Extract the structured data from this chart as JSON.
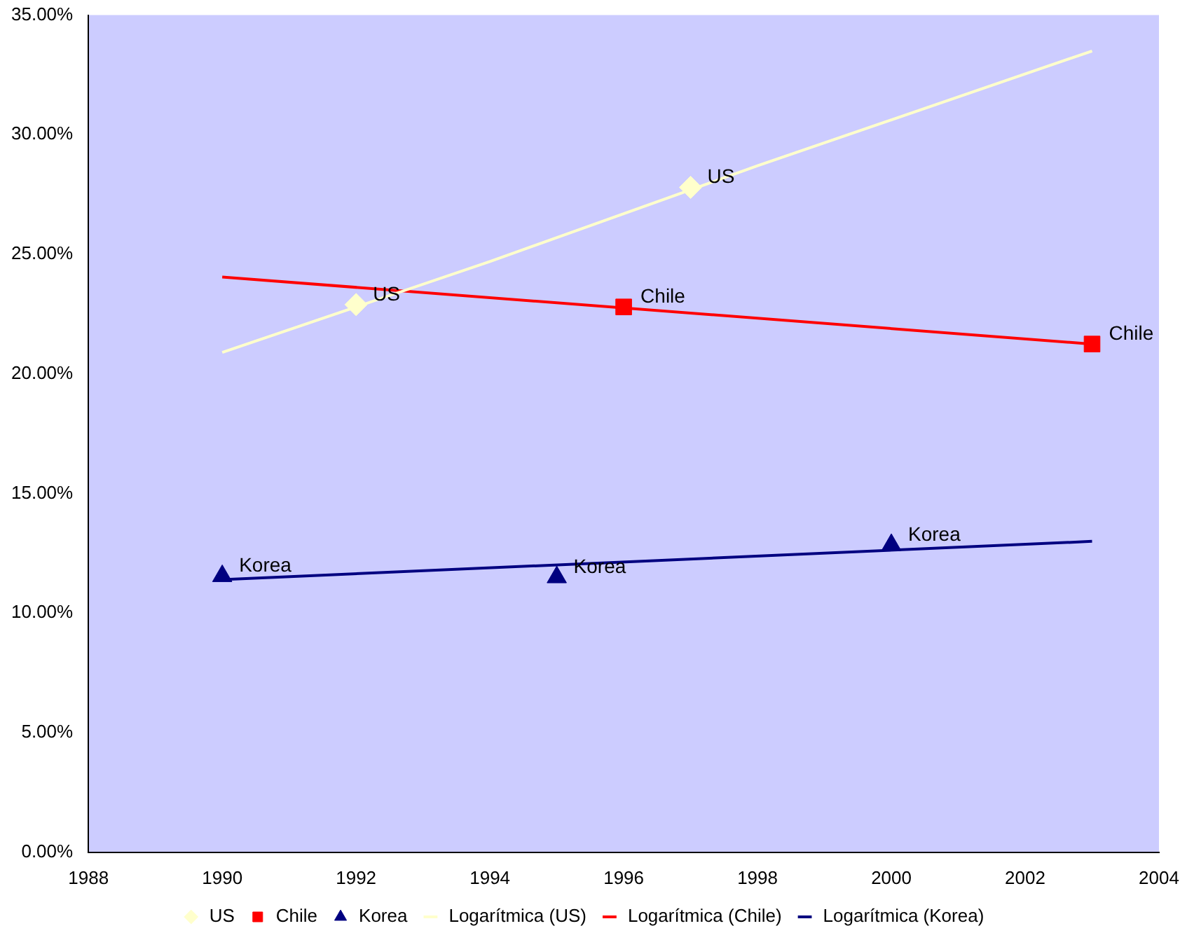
{
  "chart_data": {
    "type": "scatter",
    "legend": "bottom",
    "grid": false,
    "xlim": [
      1988,
      2004
    ],
    "xticks": [
      1988,
      1990,
      1992,
      1994,
      1996,
      1998,
      2000,
      2002,
      2004
    ],
    "ylim": [
      0,
      35
    ],
    "yticks": [
      {
        "value": 0,
        "label": "0.00%"
      },
      {
        "value": 5,
        "label": "5.00%"
      },
      {
        "value": 10,
        "label": "10.00%"
      },
      {
        "value": 15,
        "label": "15.00%"
      },
      {
        "value": 20,
        "label": "20.00%"
      },
      {
        "value": 25,
        "label": "25.00%"
      },
      {
        "value": 30,
        "label": "30.00%"
      },
      {
        "value": 35,
        "label": "35.00%"
      }
    ],
    "series": [
      {
        "name": "US",
        "type": "scatter",
        "marker": "diamond",
        "color": "#ffffcc",
        "x": [
          1992,
          1997
        ],
        "values": [
          22.9,
          27.8
        ]
      },
      {
        "name": "Chile",
        "type": "scatter",
        "marker": "square",
        "color": "#ff0000",
        "x": [
          1996,
          2003
        ],
        "values": [
          22.8,
          21.25
        ]
      },
      {
        "name": "Korea",
        "type": "scatter",
        "marker": "triangle",
        "color": "#000080",
        "x": [
          1990,
          1995,
          2000
        ],
        "values": [
          11.55,
          11.5,
          12.85
        ]
      },
      {
        "name": "Logarítmica (US)",
        "type": "line",
        "marker": "none",
        "color": "#ffffcc",
        "x": [
          1990,
          1994,
          1998,
          2003
        ],
        "values": [
          20.9,
          24.7,
          28.7,
          33.5
        ]
      },
      {
        "name": "Logarítmica (Chile)",
        "type": "line",
        "marker": "none",
        "color": "#ff0000",
        "x": [
          1990,
          2003
        ],
        "values": [
          24.05,
          21.25
        ]
      },
      {
        "name": "Logarítmica (Korea)",
        "type": "line",
        "marker": "none",
        "color": "#000080",
        "x": [
          1990,
          2003
        ],
        "values": [
          11.4,
          13.0
        ]
      }
    ],
    "annotations": [
      {
        "text": "US",
        "x": 1992,
        "y": 22.9
      },
      {
        "text": "US",
        "x": 1997,
        "y": 27.8
      },
      {
        "text": "Chile",
        "x": 1996,
        "y": 22.8
      },
      {
        "text": "Chile",
        "x": 2003,
        "y": 21.25
      },
      {
        "text": "Korea",
        "x": 1990,
        "y": 11.55
      },
      {
        "text": "Korea",
        "x": 1995,
        "y": 11.5
      },
      {
        "text": "Korea",
        "x": 2000,
        "y": 12.85
      }
    ]
  }
}
